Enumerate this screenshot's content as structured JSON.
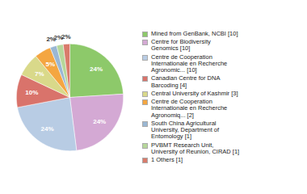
{
  "chart_data": {
    "type": "pie",
    "categories": [
      "Mined from GenBank, NCBI [10]",
      "Centre for Biodiversity\nGenomics [10]",
      "Centre de Cooperation\nInternationale en Recherche\nAgronomic... [10]",
      "Canadian Centre for DNA\nBarcoding [4]",
      "Central University of Kashmir [3]",
      "Centre de Cooperation\nInternationale en Recherche\nAgronomiq... [2]",
      "South China Agricultural\nUniversity, Department of\nEntomology [1]",
      "PVBMT Research Unit,\nUniversity of Reunion, CIRAD [1]",
      "1 Others [1]"
    ],
    "values": [
      24,
      24,
      24,
      10,
      7,
      5,
      2,
      2,
      2
    ],
    "value_labels": [
      "24%",
      "24%",
      "24%",
      "10%",
      "7%",
      "5%",
      "2%",
      "2%",
      "2%"
    ],
    "colors": [
      "#8dc96a",
      "#d4a9d4",
      "#b8cce4",
      "#d9736b",
      "#d9d98a",
      "#f4a641",
      "#9ab7d3",
      "#b6d79a",
      "#d97b6b"
    ],
    "data_labels": true
  }
}
